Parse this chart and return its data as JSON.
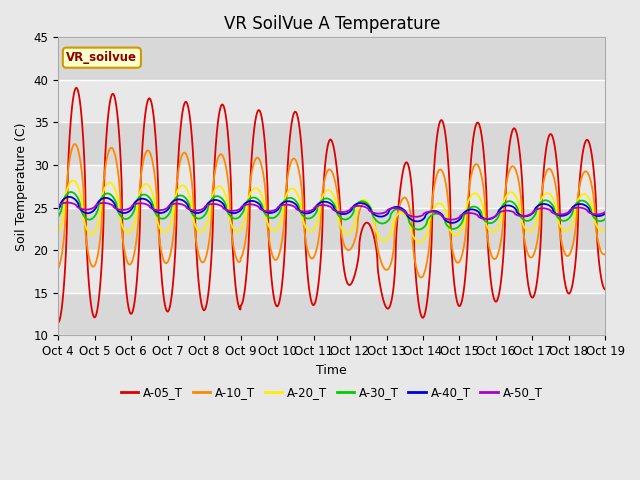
{
  "title": "VR SoilVue A Temperature",
  "xlabel": "Time",
  "ylabel": "Soil Temperature (C)",
  "ylim": [
    10,
    45
  ],
  "y_ticks": [
    10,
    15,
    20,
    25,
    30,
    35,
    40,
    45
  ],
  "x_tick_labels": [
    "Oct 4",
    "Oct 5",
    "Oct 6",
    "Oct 7",
    "Oct 8",
    "Oct 9",
    "Oct 10",
    "Oct 11",
    "Oct 12",
    "Oct 13",
    "Oct 14",
    "Oct 15",
    "Oct 16",
    "Oct 17",
    "Oct 18",
    "Oct 19"
  ],
  "fig_bg_color": "#e8e8e8",
  "plot_bg_color": "#e8e8e8",
  "legend_label": "VR_soilvue",
  "series_colors": {
    "A-05_T": "#dd0000",
    "A-10_T": "#ff8800",
    "A-20_T": "#ffee00",
    "A-30_T": "#00cc00",
    "A-40_T": "#0000dd",
    "A-50_T": "#aa00cc"
  },
  "series_order": [
    "A-05_T",
    "A-10_T",
    "A-20_T",
    "A-30_T",
    "A-40_T",
    "A-50_T"
  ],
  "title_fontsize": 12,
  "axis_label_fontsize": 9,
  "tick_fontsize": 8.5,
  "linewidth": 1.3
}
